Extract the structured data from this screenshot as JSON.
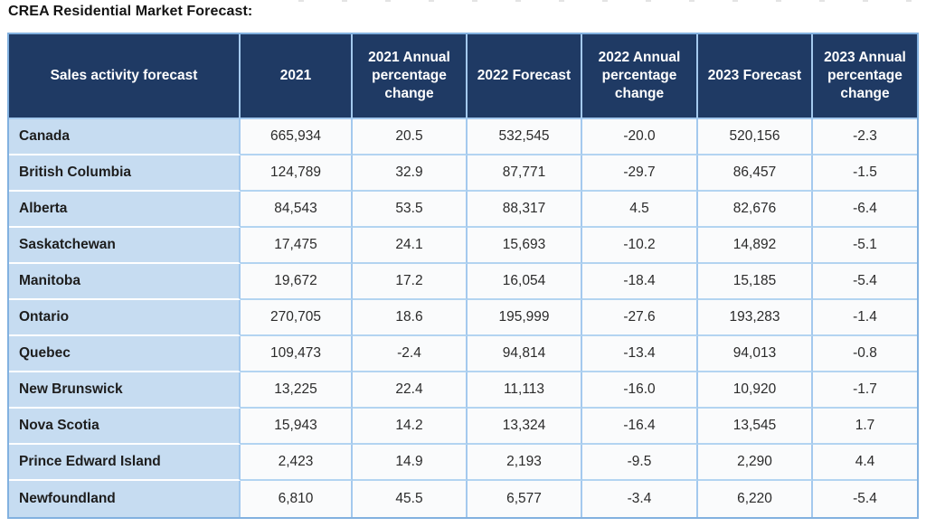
{
  "title": "CREA Residential Market Forecast:",
  "colors": {
    "header_bg": "#1f3a64",
    "header_text": "#ffffff",
    "label_column_bg": "#c6dcf1",
    "grid_border": "#a4c9ee",
    "outer_border": "#82b1e0",
    "label_row_separator": "#ffffff",
    "data_cell_bg": "#fafbfc"
  },
  "chart_data": {
    "type": "table",
    "title": "CREA Residential Market Forecast:",
    "columns": [
      "Sales activity forecast",
      "2021",
      "2021 Annual percentage change",
      "2022 Forecast",
      "2022 Annual percentage change",
      "2023 Forecast",
      "2023 Annual percentage change"
    ],
    "rows": [
      [
        "Canada",
        "665,934",
        "20.5",
        "532,545",
        "-20.0",
        "520,156",
        "-2.3"
      ],
      [
        "British Columbia",
        "124,789",
        "32.9",
        "87,771",
        "-29.7",
        "86,457",
        "-1.5"
      ],
      [
        "Alberta",
        "84,543",
        "53.5",
        "88,317",
        "4.5",
        "82,676",
        "-6.4"
      ],
      [
        "Saskatchewan",
        "17,475",
        "24.1",
        "15,693",
        "-10.2",
        "14,892",
        "-5.1"
      ],
      [
        "Manitoba",
        "19,672",
        "17.2",
        "16,054",
        "-18.4",
        "15,185",
        "-5.4"
      ],
      [
        "Ontario",
        "270,705",
        "18.6",
        "195,999",
        "-27.6",
        "193,283",
        "-1.4"
      ],
      [
        "Quebec",
        "109,473",
        "-2.4",
        "94,814",
        "-13.4",
        "94,013",
        "-0.8"
      ],
      [
        "New Brunswick",
        "13,225",
        "22.4",
        "11,113",
        "-16.0",
        "10,920",
        "-1.7"
      ],
      [
        "Nova Scotia",
        "15,943",
        "14.2",
        "13,324",
        "-16.4",
        "13,545",
        "1.7"
      ],
      [
        "Prince Edward Island",
        "2,423",
        "14.9",
        "2,193",
        "-9.5",
        "2,290",
        "4.4"
      ],
      [
        "Newfoundland",
        "6,810",
        "45.5",
        "6,577",
        "-3.4",
        "6,220",
        "-5.4"
      ]
    ]
  }
}
